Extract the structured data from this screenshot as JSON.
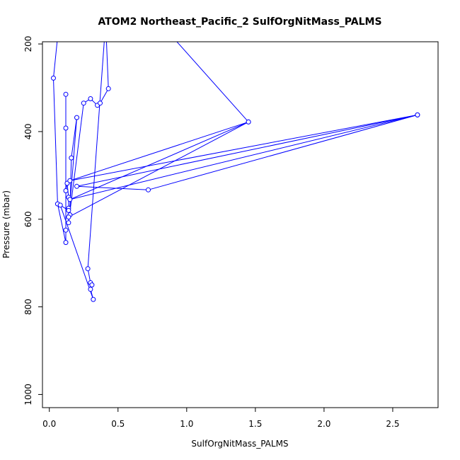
{
  "chart_data": {
    "type": "line",
    "title": "ATOM2 Northeast_Pacific_2 SulfOrgNitMass_PALMS",
    "xlabel": "SulfOrgNitMass_PALMS",
    "ylabel": "Pressure (mbar)",
    "xlim": [
      -0.05,
      2.83
    ],
    "ylim": [
      1030,
      195
    ],
    "y_reversed": true,
    "xticks": [
      "0.0",
      "0.5",
      "1.0",
      "1.5",
      "2.0",
      "2.5"
    ],
    "xtick_values": [
      0,
      0.5,
      1.0,
      1.5,
      2.0,
      2.5
    ],
    "yticks": [
      "200",
      "400",
      "600",
      "800",
      "1000"
    ],
    "ytick_values": [
      200,
      400,
      600,
      800,
      1000
    ],
    "grid": false,
    "legend": "none",
    "series_color": "#0000ff",
    "series": [
      {
        "points": [
          [
            0.12,
            0
          ],
          [
            0.03,
            278
          ],
          [
            0.06,
            565
          ],
          [
            0.12,
            653
          ],
          [
            0.12,
            625
          ],
          [
            0.12,
            315
          ],
          [
            0.12,
            392
          ],
          [
            0.12,
            535
          ],
          [
            0.13,
            518
          ],
          [
            0.14,
            550
          ],
          [
            0.14,
            575
          ],
          [
            0.15,
            590
          ],
          [
            0.16,
            460
          ],
          [
            0.2,
            368
          ],
          [
            0.14,
            608
          ],
          [
            0.25,
            335
          ],
          [
            0.3,
            325
          ],
          [
            0.35,
            340
          ],
          [
            0.37,
            335
          ],
          [
            0.43,
            302
          ],
          [
            0.41,
            150
          ],
          [
            0.28,
            713
          ],
          [
            0.3,
            745
          ],
          [
            0.31,
            750
          ],
          [
            0.3,
            760
          ],
          [
            0.32,
            783
          ],
          [
            0.08,
            568
          ],
          [
            0.14,
            580
          ],
          [
            0.14,
            595
          ],
          [
            1.45,
            378
          ],
          [
            0.15,
            555
          ],
          [
            2.68,
            362
          ],
          [
            0.72,
            533
          ],
          [
            0.2,
            525
          ],
          [
            2.68,
            362
          ],
          [
            0.15,
            512
          ],
          [
            1.45,
            378
          ],
          [
            0.9,
            185
          ]
        ]
      }
    ]
  }
}
